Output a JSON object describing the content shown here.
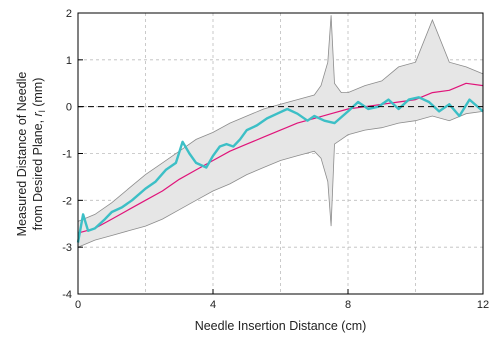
{
  "chart_data": {
    "type": "line",
    "xlabel": "Needle Insertion Distance (cm)",
    "ylabel_line1": "Measured Distance of Needle",
    "ylabel_line2_prefix": "from Desired Plane, ",
    "ylabel_var": "r",
    "ylabel_sub": "l",
    "ylabel_suffix": " (mm)",
    "xlim": [
      0,
      12
    ],
    "ylim": [
      -4,
      2
    ],
    "x_ticks": [
      0,
      4,
      8,
      12
    ],
    "y_ticks": [
      -4,
      -3,
      -2,
      -1,
      0,
      1,
      2
    ],
    "grid": true,
    "reference_line_y": 0,
    "colors": {
      "band_fill": "#e6e6e6",
      "band_edge": "#8c8c8c",
      "mean": "#e0147a",
      "single": "#3cbfc6",
      "reference": "#000000"
    },
    "band": {
      "x": [
        0,
        0.5,
        1,
        1.5,
        2,
        2.5,
        3,
        3.5,
        4,
        4.5,
        5,
        5.5,
        6,
        6.5,
        7,
        7.2,
        7.4,
        7.5,
        7.6,
        7.8,
        8,
        8.5,
        9,
        9.5,
        10,
        10.5,
        11,
        11.5,
        12
      ],
      "upper": [
        -2.45,
        -2.3,
        -2.05,
        -1.75,
        -1.45,
        -1.2,
        -0.95,
        -0.7,
        -0.55,
        -0.35,
        -0.2,
        -0.05,
        0.05,
        0.15,
        0.25,
        0.45,
        0.95,
        1.95,
        0.5,
        0.3,
        0.3,
        0.45,
        0.55,
        0.85,
        0.95,
        1.85,
        0.95,
        0.85,
        0.7
      ],
      "lower": [
        -3.0,
        -2.85,
        -2.75,
        -2.65,
        -2.55,
        -2.4,
        -2.2,
        -2.0,
        -1.8,
        -1.65,
        -1.45,
        -1.3,
        -1.15,
        -1.05,
        -0.95,
        -1.1,
        -1.6,
        -2.55,
        -0.8,
        -0.7,
        -0.6,
        -0.5,
        -0.45,
        -0.35,
        -0.3,
        -0.2,
        -0.3,
        -0.15,
        -0.1
      ]
    },
    "series": [
      {
        "x": [
          0,
          0.5,
          1,
          1.5,
          2,
          2.5,
          3,
          3.5,
          4,
          4.5,
          5,
          5.5,
          6,
          6.5,
          7,
          7.5,
          8,
          8.5,
          9,
          9.5,
          10,
          10.5,
          11,
          11.5,
          12
        ],
        "values": [
          -2.7,
          -2.6,
          -2.4,
          -2.2,
          -2.0,
          -1.8,
          -1.55,
          -1.35,
          -1.15,
          -0.95,
          -0.8,
          -0.65,
          -0.5,
          -0.35,
          -0.25,
          -0.15,
          -0.05,
          0.0,
          0.05,
          0.1,
          0.15,
          0.3,
          0.35,
          0.5,
          0.45
        ]
      },
      {
        "x": [
          0,
          0.15,
          0.3,
          0.5,
          0.8,
          1.0,
          1.3,
          1.6,
          2.0,
          2.3,
          2.6,
          2.9,
          3.1,
          3.3,
          3.5,
          3.8,
          4.0,
          4.2,
          4.4,
          4.6,
          4.8,
          5.0,
          5.3,
          5.6,
          5.9,
          6.2,
          6.5,
          6.8,
          7.0,
          7.3,
          7.6,
          8.0,
          8.3,
          8.6,
          8.9,
          9.2,
          9.5,
          9.8,
          10.1,
          10.4,
          10.7,
          11.0,
          11.3,
          11.6,
          12.0
        ],
        "values": [
          -2.9,
          -2.3,
          -2.65,
          -2.6,
          -2.4,
          -2.25,
          -2.15,
          -2.0,
          -1.75,
          -1.6,
          -1.35,
          -1.2,
          -0.75,
          -1.0,
          -1.2,
          -1.3,
          -1.05,
          -0.85,
          -0.8,
          -0.85,
          -0.7,
          -0.5,
          -0.4,
          -0.25,
          -0.15,
          -0.05,
          -0.15,
          -0.3,
          -0.2,
          -0.3,
          -0.35,
          -0.1,
          0.1,
          -0.05,
          0.0,
          0.15,
          -0.05,
          0.15,
          0.2,
          0.1,
          -0.1,
          0.05,
          -0.2,
          0.15,
          -0.1
        ]
      }
    ]
  }
}
